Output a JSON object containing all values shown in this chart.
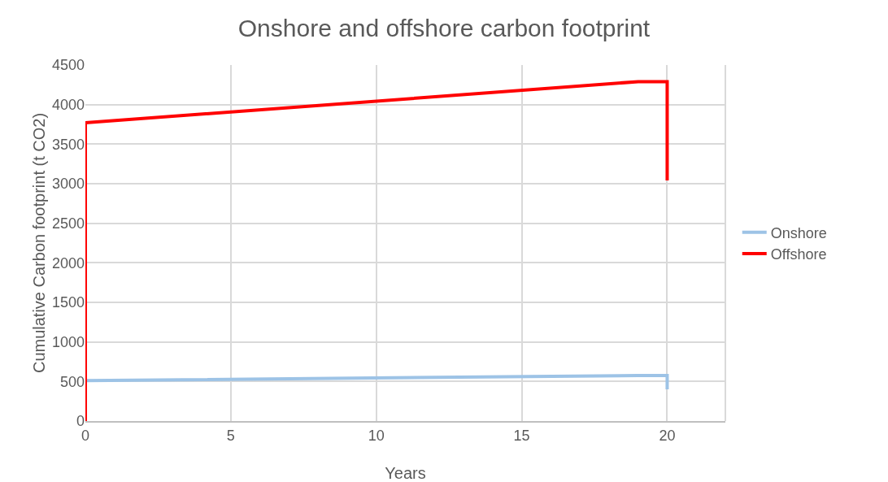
{
  "chart_data": {
    "type": "line",
    "title": "Onshore and offshore carbon footprint",
    "xlabel": "Years",
    "ylabel": "Cumulative Carbon footprint (t CO2)",
    "series": [
      {
        "name": "Onshore",
        "color": "#9dc3e6",
        "x": [
          0,
          19,
          20,
          20
        ],
        "values": [
          510,
          575,
          575,
          400
        ]
      },
      {
        "name": "Offshore",
        "color": "#ff0000",
        "x": [
          0,
          0,
          19,
          20,
          20
        ],
        "values": [
          0,
          3770,
          4290,
          4290,
          3040
        ]
      }
    ],
    "xlim": [
      0,
      22
    ],
    "xticks": [
      0,
      5,
      10,
      15,
      20
    ],
    "ylim": [
      0,
      4500
    ],
    "yticks": [
      0,
      500,
      1000,
      1500,
      2000,
      2500,
      3000,
      3500,
      4000,
      4500
    ],
    "grid": true,
    "legend": "right",
    "marker": "none",
    "line_style": "solid"
  }
}
